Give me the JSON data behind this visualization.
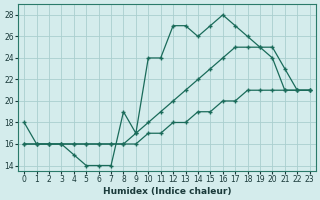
{
  "xlabel": "Humidex (Indice chaleur)",
  "xlim": [
    -0.5,
    23.5
  ],
  "ylim": [
    13.5,
    29
  ],
  "yticks": [
    14,
    16,
    18,
    20,
    22,
    24,
    26,
    28
  ],
  "xticks": [
    0,
    1,
    2,
    3,
    4,
    5,
    6,
    7,
    8,
    9,
    10,
    11,
    12,
    13,
    14,
    15,
    16,
    17,
    18,
    19,
    20,
    21,
    22,
    23
  ],
  "bg_color": "#d4ecec",
  "line_color": "#1a6b5a",
  "grid_color": "#aacfcf",
  "series": {
    "line1_zigzag": {
      "x": [
        0,
        1,
        2,
        3,
        4,
        5,
        6,
        7,
        8,
        9,
        10,
        11,
        12,
        13,
        14,
        15,
        16,
        17,
        18,
        19,
        20,
        21,
        22,
        23
      ],
      "y": [
        18,
        16,
        16,
        16,
        15,
        14,
        14,
        14,
        19,
        17,
        24,
        24,
        27,
        27,
        26,
        27,
        28,
        27,
        26,
        25,
        24,
        21,
        21,
        21
      ]
    },
    "line2_mid": {
      "x": [
        0,
        1,
        2,
        3,
        4,
        5,
        6,
        7,
        8,
        9,
        10,
        11,
        12,
        13,
        14,
        15,
        16,
        17,
        18,
        19,
        20,
        21,
        22,
        23
      ],
      "y": [
        16,
        16,
        16,
        16,
        16,
        16,
        16,
        16,
        16,
        17,
        18,
        19,
        20,
        21,
        22,
        23,
        24,
        25,
        25,
        25,
        25,
        23,
        21,
        21
      ]
    },
    "line3_low": {
      "x": [
        0,
        1,
        2,
        3,
        4,
        5,
        6,
        7,
        8,
        9,
        10,
        11,
        12,
        13,
        14,
        15,
        16,
        17,
        18,
        19,
        20,
        21,
        22,
        23
      ],
      "y": [
        16,
        16,
        16,
        16,
        16,
        16,
        16,
        16,
        16,
        16,
        17,
        17,
        18,
        18,
        19,
        19,
        20,
        20,
        21,
        21,
        21,
        21,
        21,
        21
      ]
    }
  }
}
